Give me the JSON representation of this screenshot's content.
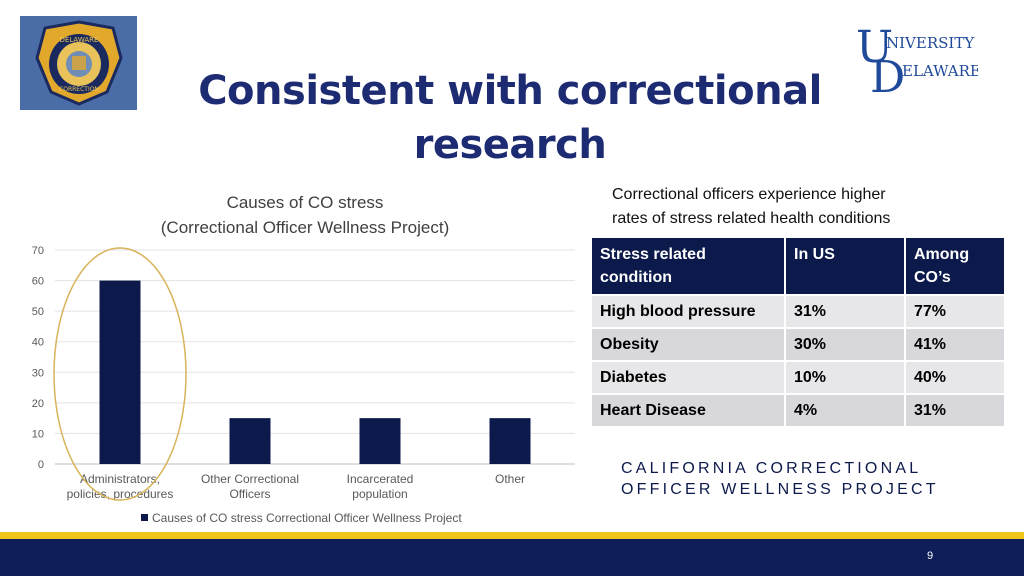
{
  "slide": {
    "title_line1": "Consistent with correctional",
    "title_line2": "research",
    "page_number": "9",
    "footer_text": "CALIFORNIA CORRECTIONAL OFFICER WELLNESS PROJECT",
    "badge_text_top": "DELAWARE",
    "badge_text_bottom": "CORRECTION",
    "logo_text_line1": "NIVERSITY OF",
    "logo_text_line2": "ELAWARE."
  },
  "colors": {
    "navy": "#0f1d58",
    "gold": "#f0c419",
    "bar": "#0c1a4b",
    "title": "#1d2b72",
    "highlight_ellipse": "#d8b45a"
  },
  "chart_data": {
    "type": "bar",
    "title_line1": "Causes of CO stress",
    "title_line2": "(Correctional Officer Wellness Project)",
    "categories": [
      [
        "Administrators,",
        "policies, procedures"
      ],
      [
        "Other Correctional",
        "Officers"
      ],
      [
        "Incarcerated",
        "population"
      ],
      [
        "Other"
      ]
    ],
    "series": [
      {
        "name": "Causes of CO stress Correctional Officer Wellness Project",
        "values": [
          60,
          15,
          15,
          15
        ]
      }
    ],
    "ylim": [
      0,
      70
    ],
    "yticks": [
      0,
      10,
      20,
      30,
      40,
      50,
      60,
      70
    ],
    "grid": true,
    "legend": "bottom",
    "annotation": "ellipse highlighting first category"
  },
  "table": {
    "caption_line1": "Correctional officers experience higher",
    "caption_line2": "rates of stress related health conditions",
    "headers": [
      [
        "Stress related",
        "condition"
      ],
      [
        "In US"
      ],
      [
        "Among",
        "CO’s"
      ]
    ],
    "rows": [
      [
        "High blood pressure",
        "31%",
        "77%"
      ],
      [
        "Obesity",
        "30%",
        "41%"
      ],
      [
        "Diabetes",
        "10%",
        "40%"
      ],
      [
        "Heart Disease",
        "4%",
        "31%"
      ]
    ]
  }
}
